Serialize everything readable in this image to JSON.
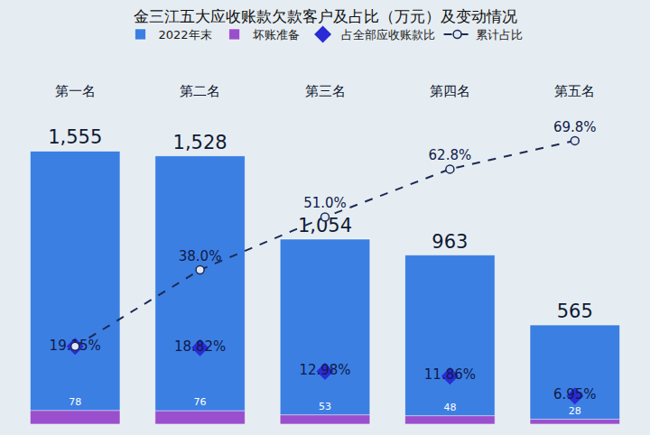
{
  "chart_data": {
    "type": "bar",
    "title": "金三江五大应收账款欠款客户及占比（万元）及变动情况",
    "categories": [
      "第一名",
      "第二名",
      "第三名",
      "第四名",
      "第五名"
    ],
    "series": [
      {
        "name": "2022年末",
        "type": "bar",
        "color": "#3b7fe3",
        "values": [
          1555,
          1528,
          1054,
          963,
          565
        ],
        "value_labels": [
          "1,555",
          "1,528",
          "1,054",
          "963",
          "565"
        ]
      },
      {
        "name": "坏账准备",
        "type": "bar",
        "color": "#9a4fcc",
        "values": [
          78,
          76,
          53,
          48,
          28
        ]
      },
      {
        "name": "占全部应收账款比",
        "type": "scatter",
        "axis": "y2",
        "color": "#2b2bd6",
        "marker": "diamond",
        "values": [
          19.15,
          18.82,
          12.98,
          11.86,
          6.95
        ],
        "value_labels": [
          "19.15%",
          "18.82%",
          "12.98%",
          "11.86%",
          "6.95%"
        ]
      },
      {
        "name": "累计占比",
        "type": "line",
        "axis": "y2",
        "color": "#1c2a55",
        "marker": "circle",
        "line_style": "dash",
        "values": [
          19.15,
          38.0,
          51.0,
          62.8,
          69.8
        ],
        "value_labels": [
          null,
          "38.0%",
          "51.0%",
          "62.8%",
          "69.8%"
        ]
      }
    ],
    "ylim": [
      0,
      1850
    ],
    "yticks": [
      0,
      1850
    ],
    "y2lim": [
      0,
      80
    ],
    "y2ticks": [
      0,
      80
    ],
    "grid": false,
    "legend": "top",
    "data_labels": true,
    "tick_labels": "x"
  }
}
